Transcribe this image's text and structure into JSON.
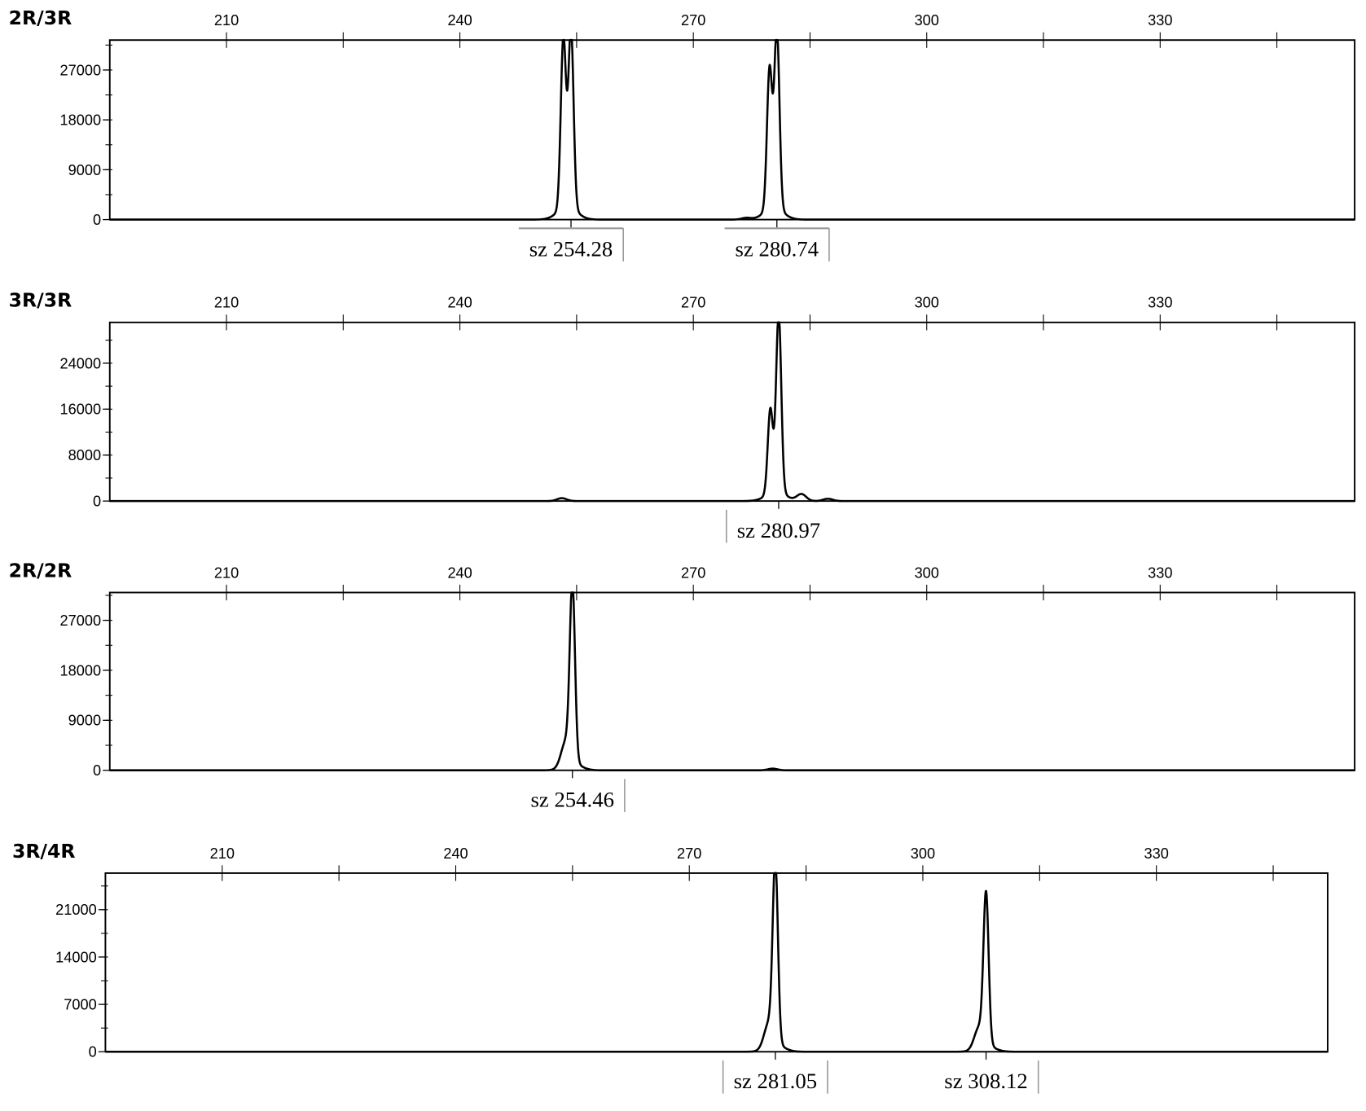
{
  "chart_data": [
    {
      "type": "line",
      "title": "2R/3R",
      "xlim": [
        195,
        355
      ],
      "ylim": [
        0,
        32400
      ],
      "xticks": [
        210,
        240,
        270,
        300,
        330
      ],
      "xminor": [
        225,
        255,
        285,
        315,
        345
      ],
      "yticks": [
        0,
        9000,
        18000,
        27000
      ],
      "peaks": [
        {
          "size": 253.3,
          "height": 30800
        },
        {
          "size": 254.28,
          "height": 32400
        },
        {
          "size": 276.8,
          "height": 300
        },
        {
          "size": 279.8,
          "height": 25400
        },
        {
          "size": 280.74,
          "height": 32400
        }
      ],
      "annotations": [
        {
          "text": "sz 254.28",
          "size": 254.28,
          "bracket": "top-right"
        },
        {
          "text": "sz 280.74",
          "size": 280.74,
          "bracket": "top-right"
        }
      ]
    },
    {
      "type": "line",
      "title": "3R/3R",
      "xlim": [
        195,
        355
      ],
      "ylim": [
        0,
        31100
      ],
      "xticks": [
        210,
        240,
        270,
        300,
        330
      ],
      "xminor": [
        225,
        255,
        285,
        315,
        345
      ],
      "yticks": [
        0,
        8000,
        16000,
        24000
      ],
      "peaks": [
        {
          "size": 253.1,
          "height": 500
        },
        {
          "size": 279.9,
          "height": 14700
        },
        {
          "size": 280.97,
          "height": 31100
        },
        {
          "size": 283.9,
          "height": 1200
        },
        {
          "size": 287.3,
          "height": 400
        }
      ],
      "annotations": [
        {
          "text": "sz 280.97",
          "size": 280.97,
          "bracket": "left"
        }
      ]
    },
    {
      "type": "line",
      "title": "2R/2R",
      "xlim": [
        195,
        355
      ],
      "ylim": [
        0,
        32000
      ],
      "xticks": [
        210,
        240,
        270,
        300,
        330
      ],
      "xminor": [
        225,
        255,
        285,
        315,
        345
      ],
      "yticks": [
        0,
        9000,
        18000,
        27000
      ],
      "peaks": [
        {
          "size": 253.6,
          "height": 4300
        },
        {
          "size": 254.46,
          "height": 31500
        },
        {
          "size": 280.2,
          "height": 300
        }
      ],
      "annotations": [
        {
          "text": "sz 254.46",
          "size": 254.46,
          "bracket": "right"
        }
      ]
    },
    {
      "type": "line",
      "title": "3R/4R",
      "xlim": [
        195,
        352
      ],
      "ylim": [
        0,
        26400
      ],
      "xticks": [
        210,
        240,
        270,
        300,
        330
      ],
      "xminor": [
        225,
        255,
        285,
        315,
        345
      ],
      "yticks": [
        0,
        7000,
        14000,
        21000
      ],
      "peaks": [
        {
          "size": 280.2,
          "height": 3500
        },
        {
          "size": 281.05,
          "height": 26400
        },
        {
          "size": 307.2,
          "height": 3000
        },
        {
          "size": 308.12,
          "height": 22000
        }
      ],
      "annotations": [
        {
          "text": "sz 281.05",
          "size": 281.05,
          "bracket": "both"
        },
        {
          "text": "sz 308.12",
          "size": 308.12,
          "bracket": "right"
        }
      ]
    }
  ]
}
